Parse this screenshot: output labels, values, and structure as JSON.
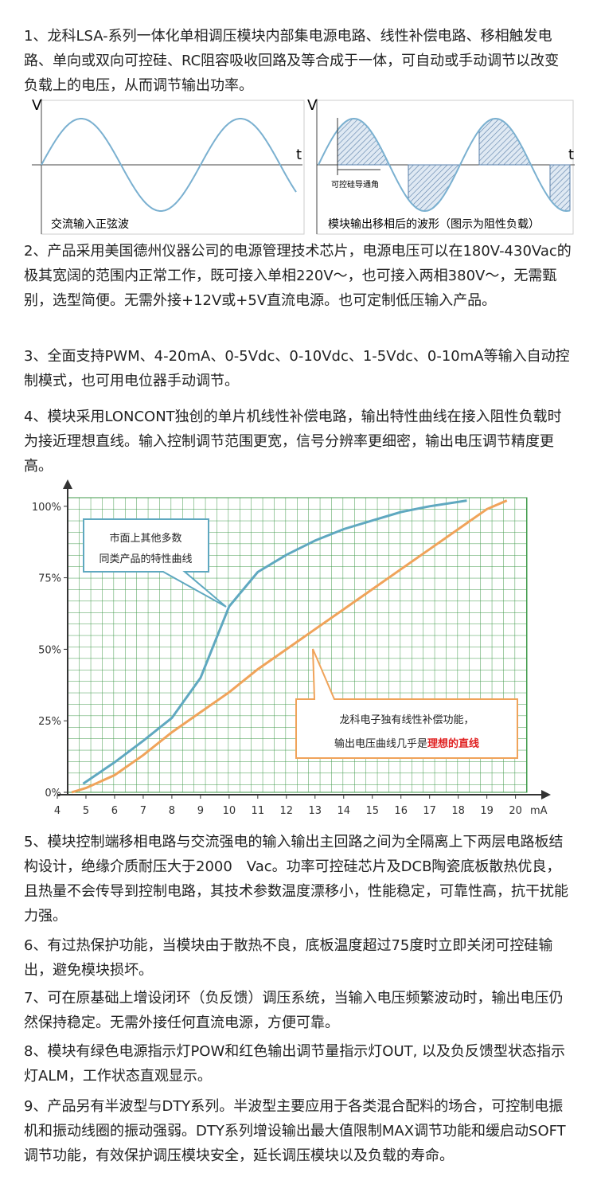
{
  "paragraphs": [
    "1、龙科LSA-系列一体化单相调压模块内部集电源电路、线性补偿电路、移相触发电路、单向或双向可控硅、RC阻容吸收回路及等合成于一体，可自动或手动调节以改变负载上的电压，从而调节输出功率。",
    "2、产品采用美国德州仪器公司的电源管理技术芯片，电源电压可以在180V-430Vac的极其宽阔的范围内正常工作，既可接入单相220V～，也可接入两相380V～，无需甄别，选型简便。无需外接+12V或+5V直流电源。也可定制低压输入产品。",
    "3、全面支持PWM、4-20mA、0-5Vdc、0-10Vdc、1-5Vdc、0-10mA等输入自动控制模式，也可用电位器手动调节。",
    "4、模块采用LONCONT独创的单片机线性补偿电路，输出特性曲线在接入阻性负载时为接近理想直线。输入控制调节范围更宽，信号分辨率更细密，输出电压调节精度更高。",
    "5、模块控制端移相电路与交流强电的输入输出主回路之间为全隔离上下两层电路板结构设计，绝缘介质耐压大于2000　Vac。功率可控硅芯片及DCB陶瓷底板散热优良，且热量不会传导到控制电路，其技术参数温度漂移小，性能稳定，可靠性高，抗干扰能力强。",
    "6、有过热保护功能，当模块由于散热不良，底板温度超过75度时立即关闭可控硅输出，避免模块损坏。",
    "7、可在原基础上增设闭环（负反馈）调压系统，当输入电压频繁波动时，输出电压仍然保持稳定。无需外接任何直流电源，方便可靠。",
    "8、模块有绿色电源指示灯POW和红色输出调节量指示灯OUT, 以及负反馈型状态指示灯ALM，工作状态直观显示。",
    "9、产品另有半波型与DTY系列。半波型主要应用于各类混合配料的场合，可控制电振机和振动线圈的振动强弱。DTY系列增设输出最大值限制MAX调节功能和缓启动SOFT调节功能，有效保护调压模块安全，延长调压模块以及负载的寿命。"
  ],
  "wave_figure": {
    "left": {
      "v_label": "V",
      "t_label": "t",
      "caption": "交流输入正弦波"
    },
    "right": {
      "v_label": "V",
      "t_label": "t",
      "angle_label": "可控硅导通角",
      "caption": "模块输出移相后的波形（图示为阻性负载）"
    }
  },
  "chart_data": {
    "type": "line",
    "xlim": [
      4,
      20.4
    ],
    "ylim": [
      0,
      103
    ],
    "xticks": [
      4,
      5,
      6,
      7,
      8,
      9,
      10,
      11,
      12,
      13,
      14,
      15,
      16,
      17,
      18,
      19,
      20
    ],
    "yticks": [
      {
        "value": 0,
        "label": "0%"
      },
      {
        "value": 25,
        "label": "25%"
      },
      {
        "value": 50,
        "label": "50%"
      },
      {
        "value": 75,
        "label": "75%"
      },
      {
        "value": 100,
        "label": "100%"
      }
    ],
    "x_unit": "mA",
    "series": [
      {
        "color": "#5fa8c0",
        "x": [
          4.9,
          6,
          7,
          8,
          9,
          10,
          11,
          12,
          13,
          14,
          15,
          16,
          17,
          18.3
        ],
        "values": [
          3,
          10.5,
          18,
          26,
          40,
          65,
          77,
          83,
          88,
          92,
          95,
          98,
          100,
          102
        ]
      },
      {
        "color": "#f0a35a",
        "x": [
          4.5,
          5,
          6,
          7,
          8,
          9,
          10,
          11,
          12,
          13,
          14,
          15,
          16,
          17,
          18,
          19,
          19.7
        ],
        "values": [
          0,
          1.5,
          6,
          13,
          21,
          28,
          35,
          43,
          50,
          57,
          64,
          71,
          78,
          85,
          92,
          99,
          102
        ]
      }
    ],
    "annotations": [
      {
        "lines": [
          "市面上其他多数",
          "同类产品的特性曲线"
        ]
      },
      {
        "lines": [
          "龙科电子独有线性补偿功能，",
          "输出电压曲线几乎是"
        ],
        "highlight": "理想的直线",
        "highlight_color": "#e02020"
      }
    ]
  }
}
